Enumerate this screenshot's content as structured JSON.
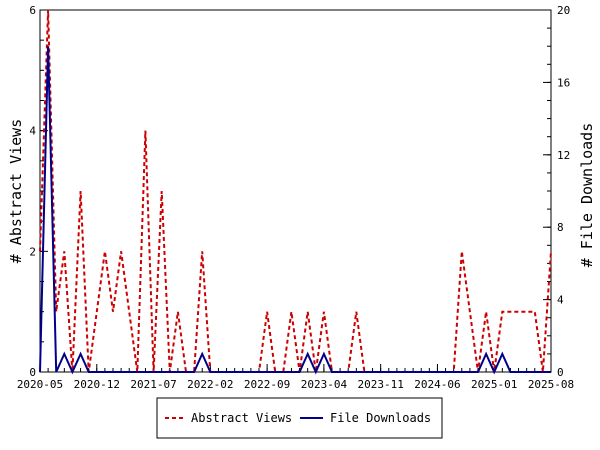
{
  "chart_data": {
    "type": "line",
    "x_axis": {
      "tick_labels": [
        "2020-05",
        "2020-12",
        "2021-07",
        "2022-02",
        "2022-09",
        "2023-04",
        "2023-11",
        "2024-06",
        "2025-01",
        "2025-08"
      ],
      "range_months": [
        0,
        63
      ]
    },
    "y_left": {
      "label": "# Abstract Views",
      "range": [
        0,
        6
      ],
      "ticks": [
        "0",
        "2",
        "4",
        "6"
      ]
    },
    "y_right": {
      "label": "# File Downloads",
      "range": [
        0,
        20
      ],
      "ticks": [
        "0",
        "4",
        "8",
        "12",
        "16",
        "20"
      ]
    },
    "legend": {
      "position": "bottom"
    },
    "series": [
      {
        "name": "Abstract Views",
        "axis": "left",
        "color": "#cc0000",
        "style": "dashed",
        "x": [
          0,
          1,
          2,
          3,
          4,
          5,
          6,
          7,
          8,
          9,
          10,
          11,
          12,
          13,
          14,
          15,
          16,
          17,
          18,
          19,
          20,
          21,
          22,
          23,
          24,
          25,
          26,
          27,
          28,
          29,
          30,
          31,
          32,
          33,
          34,
          35,
          36,
          37,
          38,
          39,
          40,
          41,
          42,
          43,
          44,
          45,
          46,
          47,
          48,
          49,
          50,
          51,
          52,
          53,
          54,
          55,
          56,
          57,
          58,
          59,
          60,
          61,
          62,
          63
        ],
        "values": [
          2,
          6,
          1,
          2,
          0,
          3,
          0,
          1,
          2,
          1,
          2,
          1,
          0,
          4,
          0,
          3,
          0,
          1,
          0,
          0,
          2,
          0,
          0,
          0,
          0,
          0,
          0,
          0,
          1,
          0,
          0,
          1,
          0,
          1,
          0,
          1,
          0,
          0,
          0,
          1,
          0,
          0,
          0,
          0,
          0,
          0,
          0,
          0,
          0,
          0,
          0,
          0,
          2,
          1,
          0,
          1,
          0,
          1,
          1,
          1,
          1,
          1,
          0,
          2
        ]
      },
      {
        "name": "File Downloads",
        "axis": "right",
        "color": "#00008b",
        "style": "solid",
        "x": [
          0,
          1,
          2,
          3,
          4,
          5,
          6,
          7,
          8,
          9,
          10,
          11,
          12,
          13,
          14,
          15,
          16,
          17,
          18,
          19,
          20,
          21,
          22,
          23,
          24,
          25,
          26,
          27,
          28,
          29,
          30,
          31,
          32,
          33,
          34,
          35,
          36,
          37,
          38,
          39,
          40,
          41,
          42,
          43,
          44,
          45,
          46,
          47,
          48,
          49,
          50,
          51,
          52,
          53,
          54,
          55,
          56,
          57,
          58,
          59,
          60,
          61,
          62,
          63
        ],
        "values": [
          0,
          18,
          0,
          1,
          0,
          1,
          0,
          0,
          0,
          0,
          0,
          0,
          0,
          0,
          0,
          0,
          0,
          0,
          0,
          0,
          1,
          0,
          0,
          0,
          0,
          0,
          0,
          0,
          0,
          0,
          0,
          0,
          0,
          1,
          0,
          1,
          0,
          0,
          0,
          0,
          0,
          0,
          0,
          0,
          0,
          0,
          0,
          0,
          0,
          0,
          0,
          0,
          0,
          0,
          0,
          1,
          0,
          1,
          0,
          0,
          0,
          0,
          0,
          0
        ]
      }
    ]
  }
}
